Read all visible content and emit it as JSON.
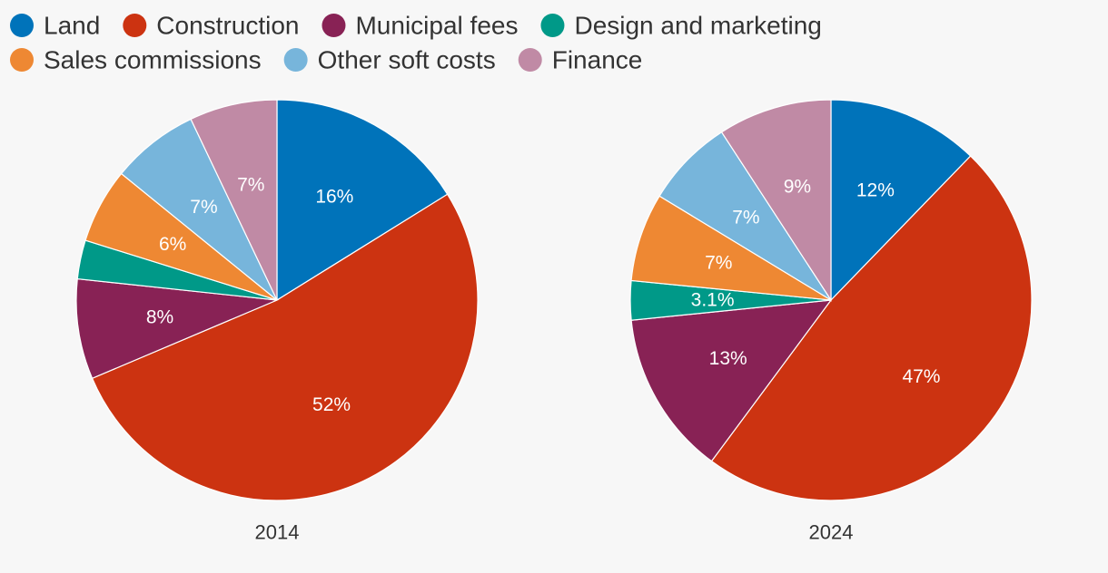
{
  "chart_data": {
    "type": "pie",
    "legend_position": "top-left",
    "categories": [
      {
        "name": "Land",
        "color": "#0073BA"
      },
      {
        "name": "Construction",
        "color": "#CC3311"
      },
      {
        "name": "Municipal fees",
        "color": "#882255"
      },
      {
        "name": "Design and marketing",
        "color": "#009988"
      },
      {
        "name": "Sales commissions",
        "color": "#EE8833"
      },
      {
        "name": "Other soft costs",
        "color": "#77B5DB"
      },
      {
        "name": "Finance",
        "color": "#C08AA5"
      }
    ],
    "pies": [
      {
        "title": "2014",
        "values": [
          16,
          52,
          8,
          3.1,
          6,
          7,
          7
        ],
        "labels": [
          "16%",
          "52%",
          "8%",
          "",
          "6%",
          "7%",
          "7%"
        ]
      },
      {
        "title": "2024",
        "values": [
          12,
          47,
          13,
          3.1,
          7,
          7,
          9
        ],
        "labels": [
          "12%",
          "47%",
          "13%",
          "3.1%",
          "7%",
          "7%",
          "9%"
        ]
      }
    ]
  }
}
